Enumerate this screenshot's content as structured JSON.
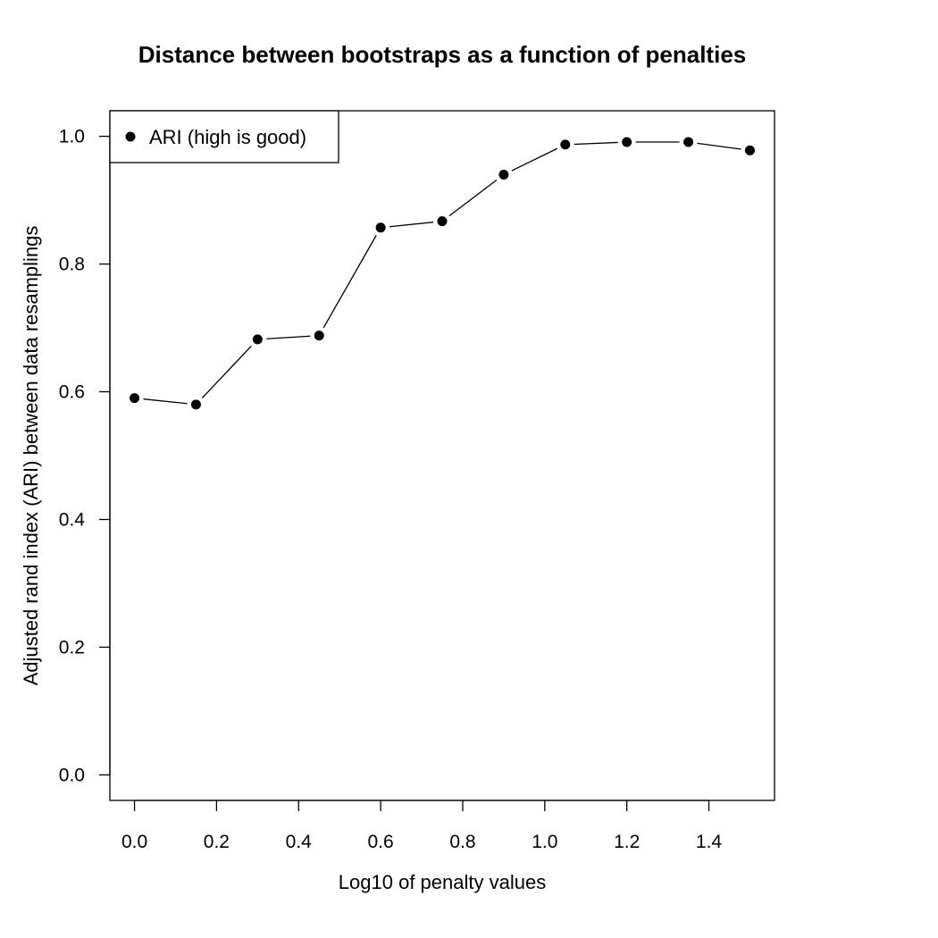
{
  "chart_data": {
    "type": "line",
    "title": "Distance between bootstraps as a function of penalties",
    "xlabel": "Log10 of penalty values",
    "ylabel": "Adjusted rand index (ARI) between data resamplings",
    "x": [
      0.0,
      0.15,
      0.3,
      0.45,
      0.6,
      0.75,
      0.9,
      1.05,
      1.2,
      1.35,
      1.5
    ],
    "series": [
      {
        "name": "ARI (high is good)",
        "values": [
          0.59,
          0.58,
          0.682,
          0.688,
          0.857,
          0.867,
          0.94,
          0.987,
          0.991,
          0.991,
          0.978
        ]
      }
    ],
    "xlim": [
      -0.06,
      1.56
    ],
    "ylim": [
      -0.04,
      1.04
    ],
    "xticks": [
      0.0,
      0.2,
      0.4,
      0.6,
      0.8,
      1.0,
      1.2,
      1.4
    ],
    "xtick_labels": [
      "0.0",
      "0.2",
      "0.4",
      "0.6",
      "0.8",
      "1.0",
      "1.2",
      "1.4"
    ],
    "yticks": [
      0.0,
      0.2,
      0.4,
      0.6,
      0.8,
      1.0
    ],
    "ytick_labels": [
      "0.0",
      "0.2",
      "0.4",
      "0.6",
      "0.8",
      "1.0"
    ],
    "grid": false,
    "legend_position": "top-left",
    "line_color": "#000000",
    "marker_color": "#000000"
  }
}
